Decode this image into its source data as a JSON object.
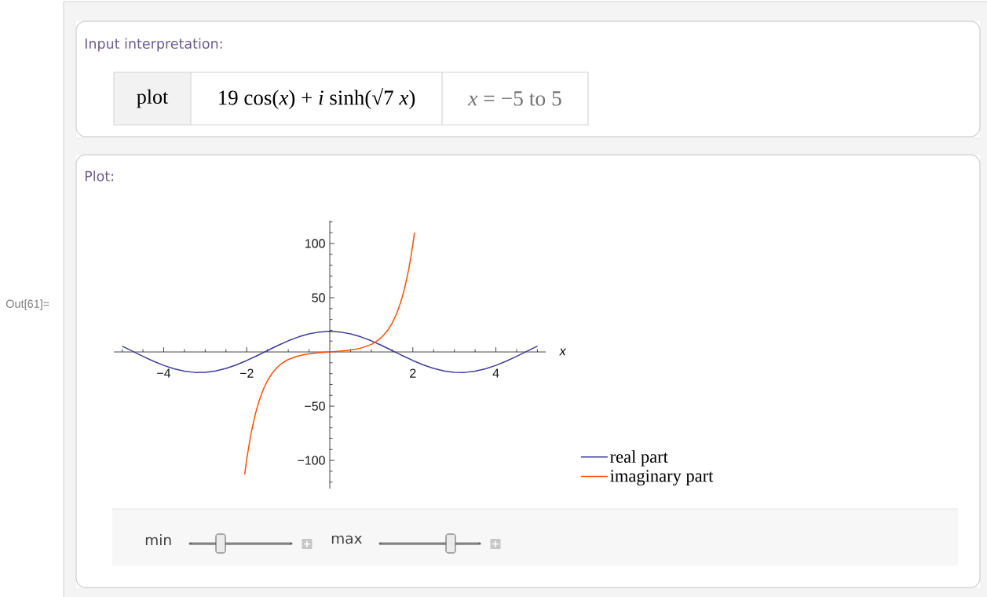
{
  "chart_data": {
    "type": "line",
    "annotations": [
      "Input interpretation:",
      "plot",
      "19 cos(*x*) + *i* sinh(√7 *x*)",
      "*x* = −5 to 5",
      "Plot:",
      "Out[61]=",
      "min",
      "max"
    ],
    "xlabel": "x",
    "xlim": [
      -5.2,
      5.2
    ],
    "ylim": [
      -126,
      121
    ],
    "xticks": [
      {
        "value": -5,
        "label": null
      },
      {
        "value": -4.5,
        "label": null
      },
      {
        "value": -4,
        "label": "−4"
      },
      {
        "value": -3.5,
        "label": null
      },
      {
        "value": -3,
        "label": null
      },
      {
        "value": -2.5,
        "label": null
      },
      {
        "value": -2,
        "label": "−2"
      },
      {
        "value": -1.5,
        "label": null
      },
      {
        "value": -1,
        "label": null
      },
      {
        "value": -0.5,
        "label": null
      },
      {
        "value": 0.5,
        "label": null
      },
      {
        "value": 1,
        "label": null
      },
      {
        "value": 1.5,
        "label": null
      },
      2,
      {
        "value": 2.5,
        "label": null
      },
      {
        "value": 3,
        "label": null
      },
      {
        "value": 3.5,
        "label": null
      },
      4,
      {
        "value": 4.5,
        "label": null
      },
      {
        "value": 5,
        "label": null
      }
    ],
    "yticks": [
      {
        "value": -120,
        "label": null
      },
      {
        "value": -110,
        "label": null
      },
      {
        "value": -100,
        "label": "−100"
      },
      {
        "value": -90,
        "label": null
      },
      {
        "value": -80,
        "label": null
      },
      {
        "value": -70,
        "label": null
      },
      {
        "value": -60,
        "label": null
      },
      {
        "value": -50,
        "label": "−50"
      },
      {
        "value": -40,
        "label": null
      },
      {
        "value": -30,
        "label": null
      },
      {
        "value": -20,
        "label": null
      },
      {
        "value": -10,
        "label": null
      },
      {
        "value": 10,
        "label": null
      },
      {
        "value": 20,
        "label": null
      },
      {
        "value": 30,
        "label": null
      },
      {
        "value": 40,
        "label": null
      },
      50,
      {
        "value": 60,
        "label": null
      },
      {
        "value": 70,
        "label": null
      },
      {
        "value": 80,
        "label": null
      },
      {
        "value": 90,
        "label": null
      },
      100,
      {
        "value": 110,
        "label": null
      },
      {
        "value": 120,
        "label": null
      }
    ],
    "legend": "bottom right",
    "series": [
      {
        "name": "real part",
        "color": "#3f3d99",
        "x": [
          -5,
          -4.75,
          -4.5,
          -4.25,
          -4,
          -3.75,
          -3.5,
          -3.25,
          -3,
          -2.75,
          -2.5,
          -2.25,
          -2,
          -1.75,
          -1.5,
          -1.25,
          -1,
          -0.75,
          -0.5,
          -0.25,
          0,
          0.25,
          0.5,
          0.75,
          1,
          1.25,
          1.5,
          1.75,
          2,
          2.25,
          2.5,
          2.75,
          3,
          3.25,
          3.5,
          3.75,
          4,
          4.25,
          4.5,
          4.75,
          5
        ],
        "values": [
          5.4,
          0.7,
          -4.0,
          -8.5,
          -12.4,
          -15.6,
          -17.8,
          -18.9,
          -18.8,
          -17.6,
          -15.2,
          -11.9,
          -7.9,
          -3.4,
          1.3,
          6.0,
          10.3,
          13.9,
          16.7,
          18.4,
          19.0,
          18.4,
          16.7,
          13.9,
          10.3,
          6.0,
          1.3,
          -3.4,
          -7.9,
          -11.9,
          -15.2,
          -17.6,
          -18.8,
          -18.9,
          -17.8,
          -15.6,
          -12.4,
          -8.5,
          -4.0,
          0.7,
          5.4
        ]
      },
      {
        "name": "imaginary part",
        "color": "#ff5000",
        "x": [
          -2.05,
          -2,
          -1.95,
          -1.9,
          -1.85,
          -1.8,
          -1.75,
          -1.7,
          -1.6,
          -1.5,
          -1.4,
          -1.3,
          -1.2,
          -1.1,
          -1,
          -0.8,
          -0.6,
          -0.4,
          -0.2,
          0,
          0.2,
          0.4,
          0.6,
          0.8,
          1,
          1.1,
          1.2,
          1.3,
          1.4,
          1.5,
          1.6,
          1.7,
          1.75,
          1.8,
          1.85,
          1.9,
          1.95,
          2,
          2.04
        ],
        "values": [
          -113,
          -99,
          -87,
          -76,
          -67,
          -58.5,
          -51.3,
          -44.9,
          -34.4,
          -26.4,
          -20.3,
          -15.6,
          -11.9,
          -9.2,
          -7.0,
          -4.1,
          -2.3,
          -1.3,
          -0.6,
          0,
          0.6,
          1.3,
          2.3,
          4.1,
          7.0,
          9.2,
          11.9,
          15.6,
          20.3,
          26.4,
          34.4,
          44.9,
          51.3,
          58.5,
          67,
          76,
          87,
          99,
          110
        ]
      }
    ]
  }
}
